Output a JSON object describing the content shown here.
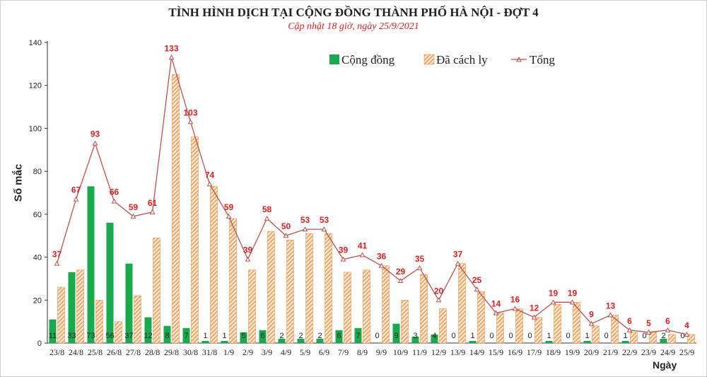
{
  "title": "TÌNH HÌNH DỊCH TẠI CỘNG ĐỒNG THÀNH PHỐ HÀ NỘI - ĐỢT 4",
  "subtitle": "Cập nhật 18 giờ, ngày 25/9/2021",
  "colors": {
    "community": "#1aaa4e",
    "quarantined": "#f0a05a",
    "total": "#c0504d",
    "total_label": "#e02020"
  },
  "chart_data": {
    "type": "bar",
    "title": "TÌNH HÌNH DỊCH TẠI CỘNG ĐỒNG THÀNH PHỐ HÀ NỘI - ĐỢT 4",
    "subtitle": "Cập nhật 18 giờ, ngày 25/9/2021",
    "xlabel": "Ngày",
    "ylabel": "Số mắc",
    "ylim": [
      0,
      140
    ],
    "yticks": [
      0,
      20,
      40,
      60,
      80,
      100,
      120,
      140
    ],
    "legend_position": "top",
    "categories": [
      "23/8",
      "24/8",
      "25/8",
      "26/8",
      "27/8",
      "28/8",
      "29/8",
      "30/8",
      "31/8",
      "1/9",
      "2/9",
      "3/9",
      "4/9",
      "5/9",
      "6/9",
      "7/9",
      "8/9",
      "9/9",
      "10/9",
      "11/9",
      "12/9",
      "13/9",
      "14/9",
      "15/9",
      "16/9",
      "17/9",
      "18/9",
      "19/9",
      "20/9",
      "21/9",
      "22/9",
      "23/9",
      "24/9",
      "25/9"
    ],
    "series": [
      {
        "name": "Cộng đồng",
        "kind": "bar",
        "values": [
          11,
          33,
          73,
          56,
          37,
          12,
          8,
          7,
          1,
          1,
          5,
          6,
          2,
          2,
          2,
          6,
          7,
          0,
          9,
          3,
          4,
          0,
          1,
          0,
          0,
          0,
          1,
          0,
          1,
          0,
          1,
          0,
          2,
          0
        ]
      },
      {
        "name": "Đã cách ly",
        "kind": "bar-hatched",
        "values": [
          26,
          34,
          20,
          10,
          22,
          49,
          125,
          96,
          73,
          58,
          34,
          52,
          48,
          51,
          51,
          33,
          34,
          36,
          20,
          32,
          16,
          37,
          24,
          14,
          16,
          12,
          18,
          19,
          8,
          13,
          5,
          5,
          4,
          4
        ]
      },
      {
        "name": "Tổng",
        "kind": "line",
        "values": [
          37,
          67,
          93,
          66,
          59,
          61,
          133,
          103,
          74,
          59,
          39,
          58,
          50,
          53,
          53,
          39,
          41,
          36,
          29,
          35,
          20,
          37,
          25,
          14,
          16,
          12,
          19,
          19,
          9,
          13,
          6,
          5,
          6,
          4
        ]
      }
    ]
  }
}
